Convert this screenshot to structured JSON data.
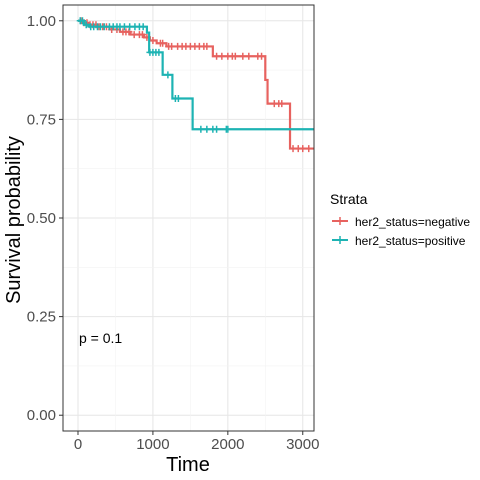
{
  "chart_data": {
    "type": "line",
    "chart_kind": "kaplan-meier survival curve (step)",
    "xlabel": "Time",
    "ylabel": "Survival probability",
    "xlim": [
      -200,
      3150
    ],
    "ylim": [
      -0.04,
      1.04
    ],
    "x_ticks": [
      0,
      1000,
      2000,
      3000
    ],
    "x_tick_labels": [
      "0",
      "1000",
      "2000",
      "3000"
    ],
    "y_ticks": [
      0,
      0.25,
      0.5,
      0.75,
      1.0
    ],
    "y_tick_labels": [
      "0.00",
      "0.25",
      "0.50",
      "0.75",
      "1.00"
    ],
    "grid": true,
    "legend": {
      "title": "Strata",
      "placement": "right",
      "entries": [
        "her2_status=negative",
        "her2_status=positive"
      ]
    },
    "annotation": "p = 0.1",
    "series": [
      {
        "name": "her2_status=negative",
        "color": "#E7625F",
        "steps": [
          [
            0,
            1.0
          ],
          [
            60,
            0.995
          ],
          [
            130,
            0.99
          ],
          [
            250,
            0.985
          ],
          [
            420,
            0.978
          ],
          [
            560,
            0.972
          ],
          [
            700,
            0.965
          ],
          [
            880,
            0.958
          ],
          [
            960,
            0.95
          ],
          [
            1050,
            0.943
          ],
          [
            1180,
            0.935
          ],
          [
            1800,
            0.91
          ],
          [
            2500,
            0.85
          ],
          [
            2530,
            0.79
          ],
          [
            2830,
            0.676
          ],
          [
            3150,
            0.676
          ]
        ],
        "censor_times": [
          40,
          80,
          120,
          160,
          200,
          240,
          280,
          330,
          380,
          450,
          520,
          600,
          640,
          680,
          750,
          820,
          860,
          920,
          1000,
          1100,
          1130,
          1210,
          1250,
          1330,
          1390,
          1440,
          1500,
          1560,
          1620,
          1680,
          1720,
          1850,
          1920,
          2000,
          2060,
          2100,
          2200,
          2280,
          2400,
          2450,
          2620,
          2680,
          2720,
          2870,
          2940,
          3000,
          3080
        ]
      },
      {
        "name": "her2_status=positive",
        "color": "#1DB3B3",
        "steps": [
          [
            0,
            1.0
          ],
          [
            80,
            0.99
          ],
          [
            150,
            0.985
          ],
          [
            920,
            0.97
          ],
          [
            950,
            0.92
          ],
          [
            1130,
            0.863
          ],
          [
            1260,
            0.803
          ],
          [
            1530,
            0.725
          ],
          [
            3150,
            0.725
          ]
        ],
        "censor_times": [
          30,
          60,
          110,
          170,
          210,
          260,
          300,
          350,
          420,
          470,
          520,
          560,
          620,
          690,
          760,
          820,
          870,
          960,
          1000,
          1040,
          1080,
          1200,
          1300,
          1340,
          1640,
          1720,
          1800,
          1850,
          1980,
          2000
        ]
      }
    ]
  }
}
